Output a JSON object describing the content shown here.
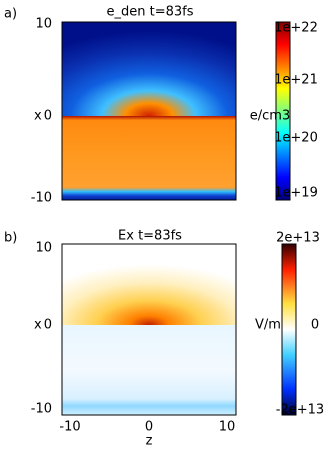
{
  "panels": [
    {
      "letter": "a)",
      "title": "e_den t=83fs",
      "y_axis_label": "x",
      "y_ticks": [
        "10",
        "0",
        "-10"
      ],
      "colorbar_ticks": [
        "1e+22",
        "1e+21",
        "1e+20",
        "1e+19"
      ],
      "colorbar_unit": "e/cm3"
    },
    {
      "letter": "b)",
      "title": "Ex t=83fs",
      "y_axis_label": "x",
      "y_ticks": [
        "10",
        "0",
        "-10"
      ],
      "x_ticks": [
        "-10",
        "0",
        "10"
      ],
      "x_axis_label": "z",
      "colorbar_ticks": [
        "2e+13",
        "0",
        "-2e+13"
      ],
      "colorbar_unit": "V/m"
    }
  ]
}
